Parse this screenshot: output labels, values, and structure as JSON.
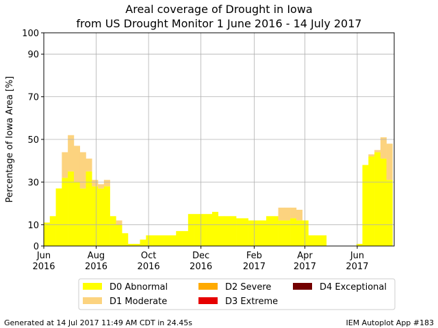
{
  "chart_data": {
    "type": "stacked_step",
    "title": "Areal coverage of Drought in Iowa",
    "subtitle": "from US Drought Monitor 1 June 2016 - 14 July 2017",
    "y_label": "Percentage of Iowa Area [%]",
    "x": [
      0,
      1,
      2,
      3,
      4,
      5,
      6,
      7,
      8,
      9,
      10,
      11,
      12,
      13,
      14,
      15,
      16,
      17,
      18,
      19,
      20,
      21,
      22,
      23,
      24,
      25,
      26,
      27,
      28,
      29,
      30,
      31,
      32,
      33,
      34,
      35,
      36,
      37,
      38,
      39,
      40,
      41,
      42,
      43,
      44,
      45,
      46,
      47,
      48,
      49,
      50,
      51,
      52,
      53,
      54,
      55,
      56,
      57
    ],
    "series": [
      {
        "name": "D0 Abnormal",
        "color": "#ffff00",
        "values": [
          11,
          14,
          27,
          32,
          35,
          30,
          27,
          35,
          28,
          27,
          28,
          14,
          10,
          6,
          1,
          1,
          3,
          5,
          5,
          5,
          5,
          5,
          7,
          7,
          15,
          15,
          15,
          15,
          16,
          14,
          14,
          14,
          13,
          13,
          12,
          12,
          12,
          14,
          14,
          12,
          12,
          13,
          12,
          12,
          5,
          5,
          5,
          0,
          0,
          0,
          0,
          0,
          1,
          38,
          42,
          44,
          41,
          31
        ]
      },
      {
        "name": "D1 Moderate",
        "color": "#fcd37f",
        "values": [
          0,
          0,
          0,
          12,
          17,
          17,
          17,
          6,
          3,
          2,
          3,
          0,
          2,
          0,
          0,
          0,
          0,
          0,
          0,
          0,
          0,
          0,
          0,
          0,
          0,
          0,
          0,
          0,
          0,
          0,
          0,
          0,
          0,
          0,
          0,
          0,
          0,
          0,
          0,
          6,
          6,
          5,
          5,
          0,
          0,
          0,
          0,
          0,
          0,
          0,
          0,
          0,
          0,
          0,
          1,
          1,
          10,
          17
        ]
      },
      {
        "name": "D2 Severe",
        "color": "#ffaa00",
        "values": [
          0,
          0,
          0,
          0,
          0,
          0,
          0,
          0,
          0,
          0,
          0,
          0,
          0,
          0,
          0,
          0,
          0,
          0,
          0,
          0,
          0,
          0,
          0,
          0,
          0,
          0,
          0,
          0,
          0,
          0,
          0,
          0,
          0,
          0,
          0,
          0,
          0,
          0,
          0,
          0,
          0,
          0,
          0,
          0,
          0,
          0,
          0,
          0,
          0,
          0,
          0,
          0,
          0,
          0,
          0,
          0,
          0,
          0
        ]
      },
      {
        "name": "D3 Extreme",
        "color": "#e60000",
        "values": [
          0,
          0,
          0,
          0,
          0,
          0,
          0,
          0,
          0,
          0,
          0,
          0,
          0,
          0,
          0,
          0,
          0,
          0,
          0,
          0,
          0,
          0,
          0,
          0,
          0,
          0,
          0,
          0,
          0,
          0,
          0,
          0,
          0,
          0,
          0,
          0,
          0,
          0,
          0,
          0,
          0,
          0,
          0,
          0,
          0,
          0,
          0,
          0,
          0,
          0,
          0,
          0,
          0,
          0,
          0,
          0,
          0,
          0
        ]
      },
      {
        "name": "D4 Exceptional",
        "color": "#730000",
        "values": [
          0,
          0,
          0,
          0,
          0,
          0,
          0,
          0,
          0,
          0,
          0,
          0,
          0,
          0,
          0,
          0,
          0,
          0,
          0,
          0,
          0,
          0,
          0,
          0,
          0,
          0,
          0,
          0,
          0,
          0,
          0,
          0,
          0,
          0,
          0,
          0,
          0,
          0,
          0,
          0,
          0,
          0,
          0,
          0,
          0,
          0,
          0,
          0,
          0,
          0,
          0,
          0,
          0,
          0,
          0,
          0,
          0,
          0
        ]
      }
    ],
    "xlim": [
      0,
      58.29
    ],
    "xticks": [
      {
        "value": 0,
        "label": "Jun\n2016"
      },
      {
        "value": 8.71,
        "label": "Aug\n2016"
      },
      {
        "value": 17.43,
        "label": "Oct\n2016"
      },
      {
        "value": 26.14,
        "label": "Dec\n2016"
      },
      {
        "value": 35,
        "label": "Feb\n2017"
      },
      {
        "value": 43.43,
        "label": "Apr\n2017"
      },
      {
        "value": 52.14,
        "label": "Jun\n2017"
      }
    ],
    "ylim": [
      0,
      100
    ],
    "yticks": [
      0,
      10,
      30,
      50,
      70,
      90,
      100
    ],
    "grid": true,
    "legend": "bottom",
    "footer_left": "Generated at 14 Jul 2017 11:49 AM CDT in 24.45s",
    "footer_right": "IEM Autoplot App #183"
  }
}
